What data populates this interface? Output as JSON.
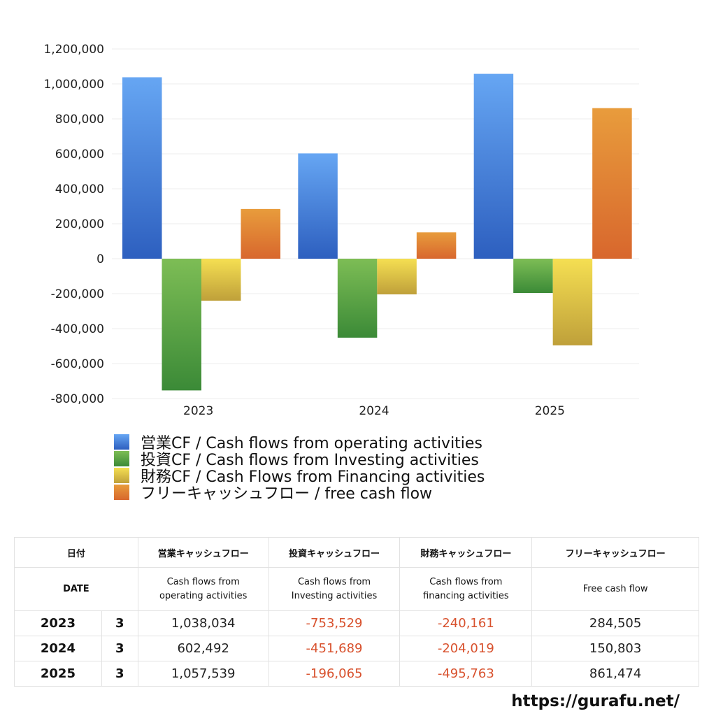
{
  "chart_data": {
    "type": "bar",
    "categories": [
      "2023",
      "2024",
      "2025"
    ],
    "ylim": [
      -800000,
      1200000
    ],
    "yticks": [
      1200000,
      1000000,
      800000,
      600000,
      400000,
      200000,
      0,
      -200000,
      -400000,
      -600000,
      -800000
    ],
    "ytick_labels": [
      "1,200,000",
      "1,000,000",
      "800,000",
      "600,000",
      "400,000",
      "200,000",
      "0",
      "-200,000",
      "-400,000",
      "-600,000",
      "-800,000"
    ],
    "grid": true,
    "legend_position": "bottom",
    "series": [
      {
        "name": "営業CF / Cash flows from operating activities",
        "values": [
          1038034,
          602492,
          1057539
        ],
        "color_top": "#66a6f3",
        "color_bottom": "#2d5fbf"
      },
      {
        "name": "投資CF / Cash flows from Investing activities",
        "values": [
          -753529,
          -451689,
          -196065
        ],
        "color_top": "#7dbd55",
        "color_bottom": "#3b8a37"
      },
      {
        "name": "財務CF / Cash Flows from Financing activities",
        "values": [
          -240161,
          -204019,
          -495763
        ],
        "color_top": "#f5df52",
        "color_bottom": "#bfa03a"
      },
      {
        "name": "フリーキャッシュフロー / free cash flow",
        "values": [
          284505,
          150803,
          861474
        ],
        "color_top": "#e89c3c",
        "color_bottom": "#d8672d"
      }
    ]
  },
  "table": {
    "headers_jp": [
      "日付",
      "営業キャッシュフロー",
      "投資キャッシュフロー",
      "財務キャッシュフロー",
      "フリーキャッシュフロー"
    ],
    "headers_en": {
      "date": "DATE",
      "operating_1": "Cash flows from",
      "operating_2": "operating activities",
      "investing_1": "Cash flows from",
      "investing_2": "Investing activities",
      "financing_1": "Cash flows from",
      "financing_2": "financing activities",
      "free": "Free cash flow"
    },
    "rows": [
      {
        "year": "2023",
        "month": "3",
        "operating": "1,038,034",
        "investing": "-753,529",
        "financing": "-240,161",
        "free": "284,505"
      },
      {
        "year": "2024",
        "month": "3",
        "operating": "602,492",
        "investing": "-451,689",
        "financing": "-204,019",
        "free": "150,803"
      },
      {
        "year": "2025",
        "month": "3",
        "operating": "1,057,539",
        "investing": "-196,065",
        "financing": "-495,763",
        "free": "861,474"
      }
    ]
  },
  "site": "https://gurafu.net/"
}
